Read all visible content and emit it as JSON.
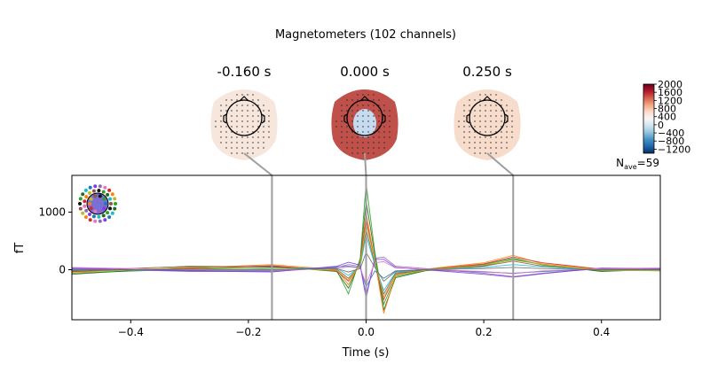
{
  "figure": {
    "suptitle": "Magnetometers (102 channels)",
    "nave_label": "N",
    "nave_sub": "ave",
    "nave_value": "=59"
  },
  "topomaps": [
    {
      "time_label": "-0.160 s",
      "time": -0.16,
      "color": "#f7e6dc"
    },
    {
      "time_label": "0.000 s",
      "time": 0.0,
      "color": "#c0504a"
    },
    {
      "time_label": "0.250 s",
      "time": 0.25,
      "color": "#f8dccb"
    }
  ],
  "colorbar": {
    "ticks": [
      2000,
      1600,
      1200,
      800,
      400,
      0,
      -400,
      -800,
      -1200
    ],
    "tick_labels": [
      "2000",
      "1600",
      "1200",
      "800",
      "400",
      "0",
      "−400",
      "−800",
      "−1200"
    ],
    "range": [
      -1400,
      2000
    ],
    "colors": [
      "#053061",
      "#2166ac",
      "#4393c3",
      "#92c5de",
      "#d1e5f0",
      "#f7f7f7",
      "#fddbc7",
      "#f4a582",
      "#d6604d",
      "#b2182b",
      "#67001f"
    ]
  },
  "chart_data": {
    "type": "line",
    "title": "",
    "xlabel": "Time (s)",
    "ylabel": "fT",
    "xlim": [
      -0.5,
      0.5
    ],
    "ylim": [
      -870,
      1640
    ],
    "x_ticks": [
      -0.4,
      -0.2,
      0.0,
      0.2,
      0.4
    ],
    "x_tick_labels": [
      "−0.4",
      "−0.2",
      "0.0",
      "0.2",
      "0.4"
    ],
    "y_ticks": [
      0,
      1000
    ],
    "y_tick_labels": [
      "0",
      "1000"
    ],
    "time_markers": [
      -0.16,
      0.0,
      0.25
    ],
    "grid": false,
    "legend": "none",
    "series": [
      {
        "color": "#2ca02c",
        "x": [
          -0.5,
          -0.3,
          -0.16,
          -0.05,
          -0.03,
          -0.01,
          0.0,
          0.015,
          0.03,
          0.05,
          0.1,
          0.2,
          0.25,
          0.3,
          0.4,
          0.5
        ],
        "values": [
          -60,
          10,
          40,
          -10,
          -420,
          200,
          1500,
          300,
          -600,
          -120,
          -10,
          90,
          200,
          80,
          -20,
          -10
        ]
      },
      {
        "color": "#1f6e1f",
        "x": [
          -0.5,
          -0.3,
          -0.16,
          -0.05,
          -0.03,
          -0.01,
          0.0,
          0.015,
          0.03,
          0.05,
          0.1,
          0.2,
          0.25,
          0.3,
          0.4,
          0.5
        ],
        "values": [
          -80,
          50,
          60,
          -30,
          -320,
          150,
          1200,
          250,
          -700,
          -140,
          -20,
          70,
          180,
          90,
          -30,
          10
        ]
      },
      {
        "color": "#ff7f0e",
        "x": [
          -0.5,
          -0.3,
          -0.16,
          -0.05,
          -0.03,
          -0.01,
          0.0,
          0.015,
          0.03,
          0.05,
          0.1,
          0.2,
          0.25,
          0.3,
          0.4,
          0.5
        ],
        "values": [
          -40,
          30,
          90,
          0,
          -260,
          120,
          1000,
          150,
          -760,
          -100,
          10,
          120,
          250,
          100,
          0,
          -20
        ]
      },
      {
        "color": "#d62728",
        "x": [
          -0.5,
          -0.3,
          -0.16,
          -0.05,
          -0.03,
          -0.01,
          0.0,
          0.015,
          0.03,
          0.05,
          0.1,
          0.2,
          0.25,
          0.3,
          0.4,
          0.5
        ],
        "values": [
          -30,
          20,
          70,
          -20,
          -200,
          100,
          900,
          120,
          -520,
          -80,
          0,
          100,
          220,
          120,
          10,
          0
        ]
      },
      {
        "color": "#8c564b",
        "x": [
          -0.5,
          -0.3,
          -0.16,
          -0.05,
          -0.03,
          -0.01,
          0.0,
          0.015,
          0.03,
          0.05,
          0.1,
          0.2,
          0.25,
          0.3,
          0.4,
          0.5
        ],
        "values": [
          -20,
          60,
          50,
          10,
          -150,
          80,
          700,
          100,
          -420,
          -60,
          -10,
          60,
          150,
          60,
          -10,
          10
        ]
      },
      {
        "color": "#17becf",
        "x": [
          -0.5,
          -0.3,
          -0.16,
          -0.05,
          -0.03,
          -0.01,
          0.0,
          0.015,
          0.03,
          0.05,
          0.1,
          0.2,
          0.25,
          0.3,
          0.4,
          0.5
        ],
        "values": [
          0,
          -20,
          20,
          30,
          -100,
          60,
          600,
          80,
          -360,
          -50,
          10,
          40,
          90,
          50,
          0,
          -10
        ]
      },
      {
        "color": "#1f77b4",
        "x": [
          -0.5,
          -0.3,
          -0.16,
          -0.05,
          -0.03,
          -0.01,
          0.0,
          0.015,
          0.03,
          0.05,
          0.1,
          0.2,
          0.25,
          0.3,
          0.4,
          0.5
        ],
        "values": [
          10,
          -10,
          -20,
          50,
          60,
          40,
          -300,
          -20,
          -150,
          -20,
          0,
          -40,
          -60,
          -30,
          10,
          0
        ]
      },
      {
        "color": "#9467bd",
        "x": [
          -0.5,
          -0.3,
          -0.16,
          -0.05,
          -0.03,
          -0.01,
          0.0,
          0.015,
          0.03,
          0.05,
          0.1,
          0.2,
          0.25,
          0.3,
          0.4,
          0.5
        ],
        "values": [
          20,
          -30,
          -30,
          40,
          90,
          60,
          -500,
          200,
          220,
          60,
          20,
          -60,
          -120,
          -60,
          20,
          10
        ]
      },
      {
        "color": "#7b3fe4",
        "x": [
          -0.5,
          -0.3,
          -0.16,
          -0.05,
          -0.03,
          -0.01,
          0.0,
          0.015,
          0.03,
          0.05,
          0.1,
          0.2,
          0.25,
          0.3,
          0.4,
          0.5
        ],
        "values": [
          30,
          -20,
          -40,
          60,
          130,
          80,
          -450,
          180,
          180,
          40,
          0,
          -80,
          -130,
          -70,
          30,
          20
        ]
      },
      {
        "color": "#e377c2",
        "x": [
          -0.5,
          -0.3,
          -0.16,
          -0.05,
          -0.03,
          -0.01,
          0.0,
          0.015,
          0.03,
          0.05,
          0.1,
          0.2,
          0.25,
          0.3,
          0.4,
          0.5
        ],
        "values": [
          40,
          0,
          -10,
          20,
          50,
          30,
          -250,
          120,
          140,
          30,
          10,
          -30,
          -70,
          -20,
          20,
          30
        ]
      },
      {
        "color": "#bcbd22",
        "x": [
          -0.5,
          -0.3,
          -0.16,
          -0.05,
          -0.03,
          -0.01,
          0.0,
          0.015,
          0.03,
          0.05,
          0.1,
          0.2,
          0.25,
          0.3,
          0.4,
          0.5
        ],
        "values": [
          -50,
          40,
          30,
          -10,
          -180,
          90,
          800,
          140,
          -470,
          -90,
          -10,
          80,
          170,
          90,
          -10,
          -20
        ]
      },
      {
        "color": "#6b6b6b",
        "x": [
          -0.5,
          -0.3,
          -0.16,
          -0.05,
          -0.03,
          -0.01,
          0.0,
          0.015,
          0.03,
          0.05,
          0.1,
          0.2,
          0.25,
          0.3,
          0.4,
          0.5
        ],
        "values": [
          -10,
          10,
          0,
          20,
          -40,
          20,
          300,
          40,
          -200,
          -30,
          0,
          20,
          40,
          20,
          0,
          0
        ]
      }
    ]
  }
}
